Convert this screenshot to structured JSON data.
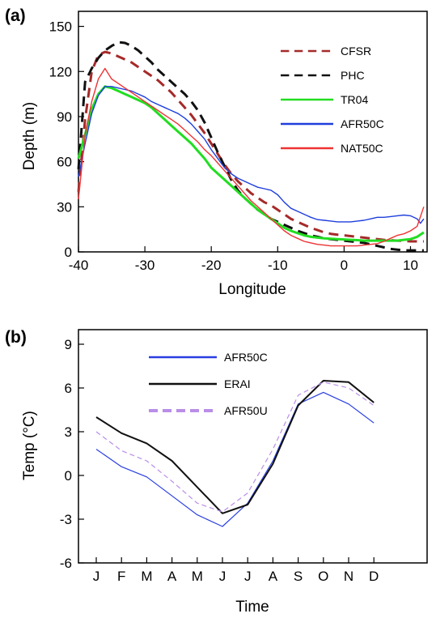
{
  "chart_data": [
    {
      "panel_label": "(a)",
      "type": "line",
      "xlabel": "Longitude",
      "ylabel": "Depth (m)",
      "xlim": [
        -40,
        12.5
      ],
      "ylim": [
        0,
        160
      ],
      "xticks": [
        -40,
        -30,
        -20,
        -10,
        0,
        10
      ],
      "yticks": [
        0,
        30,
        60,
        90,
        120,
        150
      ],
      "grid": false,
      "legend_position": "top-right",
      "series": [
        {
          "name": "CFSR",
          "color": "#a52a2a",
          "dash": "dashed",
          "x": [
            -40,
            -39,
            -38,
            -37,
            -36,
            -35,
            -34,
            -33,
            -32,
            -31,
            -30,
            -29,
            -28,
            -27,
            -26,
            -25,
            -24,
            -23,
            -22,
            -21,
            -20,
            -19,
            -18,
            -17,
            -16,
            -15,
            -14,
            -13,
            -12,
            -11,
            -10,
            -9,
            -8,
            -7,
            -6,
            -5,
            -4,
            -3,
            -2,
            -1,
            0,
            1,
            2,
            3,
            4,
            5,
            6,
            7,
            8,
            9,
            10,
            11,
            12
          ],
          "y": [
            40,
            88,
            120,
            131,
            133,
            132,
            130,
            128,
            126,
            123,
            120,
            117,
            114,
            110,
            106,
            101,
            96,
            91,
            85,
            79,
            72,
            65,
            58,
            52,
            47,
            43,
            39,
            36,
            33,
            31,
            28,
            25,
            22,
            20,
            18,
            16,
            14.5,
            13,
            12,
            11.5,
            11,
            10.5,
            10,
            9.5,
            9,
            8.5,
            8,
            7.8,
            7.5,
            7.3,
            7,
            7,
            7
          ]
        },
        {
          "name": "PHC",
          "color": "#111111",
          "dash": "dashed",
          "x": [
            -40,
            -39,
            -38,
            -37,
            -36,
            -35,
            -34,
            -33,
            -32,
            -31,
            -30,
            -29,
            -28,
            -27,
            -26,
            -25,
            -24,
            -23,
            -22,
            -21,
            -20,
            -19,
            -18,
            -17,
            -16,
            -15,
            -14,
            -13,
            -12,
            -11,
            -10,
            -9,
            -8,
            -7,
            -6,
            -5,
            -4,
            -3,
            -2,
            -1,
            0,
            1,
            2,
            3,
            4,
            5,
            6,
            7,
            8,
            9,
            10,
            11,
            12
          ],
          "y": [
            55,
            113,
            122,
            129,
            134,
            137,
            139.5,
            139,
            137,
            134,
            130,
            126,
            121,
            117,
            113,
            109,
            105,
            100,
            94,
            86,
            76,
            66,
            57,
            48,
            41,
            36,
            32,
            28,
            25,
            22,
            20,
            18,
            16,
            14,
            12.5,
            11,
            10,
            9,
            8.5,
            8,
            7.5,
            7,
            6.5,
            6,
            5,
            4,
            3,
            2,
            1.5,
            1,
            1,
            1,
            1
          ]
        },
        {
          "name": "TR04",
          "color": "#22dd22",
          "dash": "solid",
          "x": [
            -40,
            -39,
            -38,
            -37,
            -36,
            -35,
            -34,
            -33,
            -32,
            -31,
            -30,
            -29,
            -28,
            -27,
            -26,
            -25,
            -24,
            -23,
            -22,
            -21,
            -20,
            -19,
            -18,
            -17,
            -16,
            -15,
            -14,
            -13,
            -12,
            -11,
            -10,
            -9,
            -8,
            -7,
            -6,
            -5,
            -4,
            -3,
            -2,
            -1,
            0,
            1,
            2,
            3,
            4,
            5,
            6,
            7,
            8,
            9,
            10,
            11,
            12
          ],
          "y": [
            62,
            78,
            95,
            105,
            110,
            109,
            107,
            105,
            103,
            101,
            99,
            96,
            92,
            88,
            84,
            80,
            76,
            72,
            67,
            62,
            56,
            52,
            48,
            44,
            40,
            36,
            32,
            28,
            25,
            22,
            19,
            16,
            14,
            12.5,
            11,
            10,
            9.5,
            9,
            8.8,
            8.5,
            8.3,
            8,
            7.8,
            7.5,
            7.5,
            7.5,
            7.5,
            7.5,
            7.5,
            8,
            8.5,
            10,
            13
          ]
        },
        {
          "name": "AFR50C",
          "color": "#1f3fdd",
          "dash": "solid",
          "x": [
            -40,
            -39,
            -38,
            -37,
            -36,
            -35,
            -34,
            -33,
            -32,
            -31,
            -30,
            -29,
            -28,
            -27,
            -26,
            -25,
            -24,
            -23,
            -22,
            -21,
            -20,
            -19,
            -18,
            -17,
            -16,
            -15,
            -14,
            -13,
            -12,
            -11,
            -10,
            -9,
            -8,
            -7,
            -6,
            -5,
            -4,
            -3,
            -2,
            -1,
            0,
            1,
            2,
            3,
            4,
            5,
            6,
            7,
            8,
            9,
            10,
            11,
            11.5,
            12
          ],
          "y": [
            50,
            72,
            92,
            104,
            110,
            110,
            109,
            108,
            107,
            105,
            103,
            100,
            98,
            96,
            94,
            92,
            89,
            85,
            80,
            75,
            68,
            62,
            56,
            52,
            49,
            47,
            45,
            43,
            42,
            41,
            38,
            33,
            29,
            27,
            25,
            23,
            21.5,
            21,
            20.5,
            20,
            20,
            20,
            20.5,
            21,
            22,
            23,
            23,
            23.5,
            24,
            24.5,
            24,
            22,
            19,
            22
          ]
        },
        {
          "name": "NAT50C",
          "color": "#ee3333",
          "dash": "solid",
          "x": [
            -40,
            -39,
            -38,
            -37,
            -36,
            -35,
            -34,
            -33,
            -32,
            -31,
            -30,
            -29,
            -28,
            -27,
            -26,
            -25,
            -24,
            -23,
            -22,
            -21,
            -20,
            -19,
            -18,
            -17,
            -16,
            -15,
            -14,
            -13,
            -12,
            -11,
            -10,
            -9,
            -8,
            -7,
            -6,
            -5,
            -4,
            -3,
            -2,
            -1,
            0,
            1,
            2,
            3,
            4,
            5,
            6,
            7,
            8,
            9,
            10,
            11,
            12
          ],
          "y": [
            35,
            78,
            100,
            115,
            122,
            115,
            112,
            109,
            106,
            103,
            100,
            97,
            94,
            91,
            88,
            85,
            81,
            77,
            73,
            68,
            64,
            59,
            54,
            49,
            44,
            39,
            34,
            30,
            26,
            22,
            18,
            14,
            11,
            9,
            7,
            6,
            5,
            4.5,
            4,
            4,
            4,
            4,
            4,
            4.5,
            5,
            5.5,
            7,
            9,
            11,
            12,
            14,
            17,
            30
          ]
        }
      ]
    },
    {
      "panel_label": "(b)",
      "type": "line",
      "xlabel": "Time",
      "ylabel": "Temp (°C)",
      "ylim": [
        -6,
        10
      ],
      "yticks": [
        -6,
        -3,
        0,
        3,
        6,
        9
      ],
      "categories": [
        "J",
        "F",
        "M",
        "A",
        "M",
        "J",
        "J",
        "A",
        "S",
        "O",
        "N",
        "D"
      ],
      "grid": false,
      "legend_position": "top-left",
      "series": [
        {
          "name": "AFR50C",
          "color": "#2a3fe0",
          "dash": "solid",
          "values": [
            1.8,
            0.6,
            -0.1,
            -1.4,
            -2.7,
            -3.5,
            -1.9,
            1.0,
            4.9,
            5.7,
            4.9,
            3.6
          ]
        },
        {
          "name": "ERAI",
          "color": "#111111",
          "dash": "solid",
          "values": [
            4.0,
            2.9,
            2.2,
            1.0,
            -0.8,
            -2.6,
            -2.0,
            0.8,
            4.8,
            6.5,
            6.4,
            5.0
          ]
        },
        {
          "name": "AFR50U",
          "color": "#b98ee8",
          "dash": "dashed",
          "values": [
            3.0,
            1.7,
            1.0,
            -0.4,
            -1.9,
            -2.5,
            -1.2,
            1.8,
            5.5,
            6.4,
            6.0,
            4.8
          ]
        }
      ]
    }
  ]
}
